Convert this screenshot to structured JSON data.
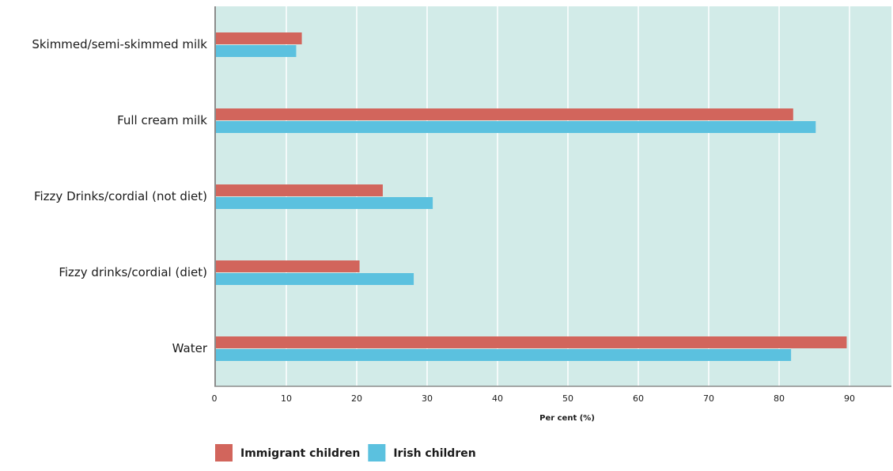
{
  "chart_data": {
    "type": "bar",
    "orientation": "horizontal",
    "categories": [
      "Skimmed/semi-skimmed milk",
      "Full cream milk",
      "Fizzy Drinks/cordial (not diet)",
      "Fizzy drinks/cordial (diet)",
      "Water"
    ],
    "series": [
      {
        "name": "Immigrant children",
        "color": "#d2655c",
        "values": [
          12.2,
          82.0,
          23.7,
          20.4,
          89.6
        ]
      },
      {
        "name": "Irish children",
        "color": "#5bc1df",
        "values": [
          11.4,
          85.2,
          30.8,
          28.1,
          81.7
        ]
      }
    ],
    "xlabel": "Per cent (%)",
    "xlim": [
      0,
      97
    ],
    "xticks": [
      0,
      10,
      20,
      30,
      40,
      50,
      60,
      70,
      80,
      90
    ],
    "grid": true,
    "plot_background": "#d2ebe8",
    "grid_color": "#ffffff",
    "legend_position": "bottom-left"
  }
}
